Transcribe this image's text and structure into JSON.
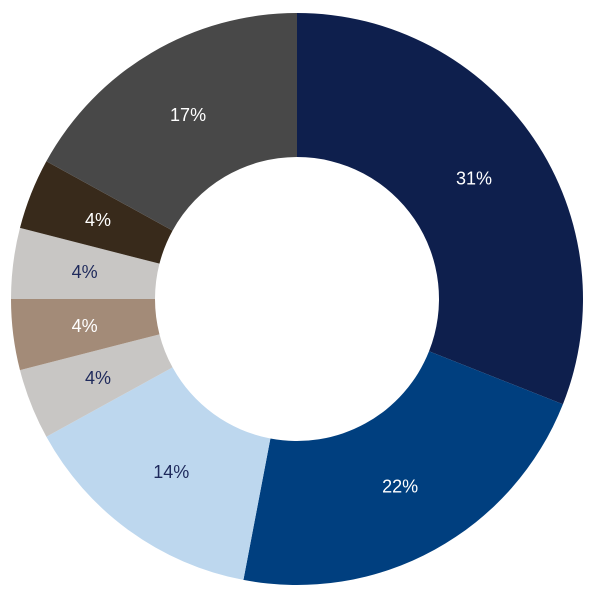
{
  "chart_data": {
    "type": "pie",
    "variant": "donut",
    "title": "",
    "legend": "none",
    "slices": [
      {
        "label": "31%",
        "value": 31,
        "color": "#0e1f4d",
        "label_color": "#ffffff"
      },
      {
        "label": "22%",
        "value": 22,
        "color": "#003f7f",
        "label_color": "#ffffff"
      },
      {
        "label": "14%",
        "value": 14,
        "color": "#bdd7ee",
        "label_color": "#1f2a5c"
      },
      {
        "label": "4%",
        "value": 4,
        "color": "#c8c6c4",
        "label_color": "#1f2a5c"
      },
      {
        "label": "4%",
        "value": 4,
        "color": "#a38b78",
        "label_color": "#ffffff"
      },
      {
        "label": "4%",
        "value": 4,
        "color": "#c8c6c4",
        "label_color": "#1f2a5c"
      },
      {
        "label": "4%",
        "value": 4,
        "color": "#382a1b",
        "label_color": "#ffffff"
      },
      {
        "label": "17%",
        "value": 17,
        "color": "#484848",
        "label_color": "#ffffff"
      }
    ]
  }
}
